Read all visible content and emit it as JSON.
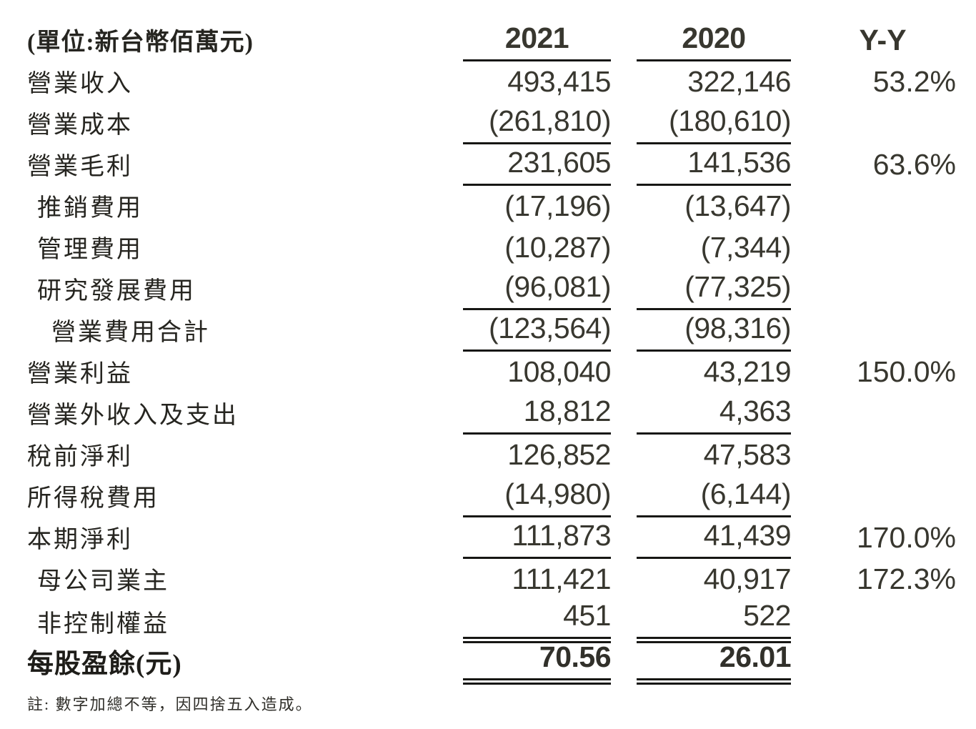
{
  "header": {
    "unit_label": "(單位:新台幣佰萬元)",
    "col_2021": "2021",
    "col_2020": "2020",
    "col_yy": "Y-Y"
  },
  "rows": [
    {
      "label": "營業收入",
      "v2021": "493,415",
      "v2020": "322,146",
      "yy": "53.2%",
      "indent": 0,
      "rule": "none",
      "bold": false
    },
    {
      "label": "營業成本",
      "v2021": "(261,810)",
      "v2020": "(180,610)",
      "yy": "",
      "indent": 0,
      "rule": "single",
      "bold": false
    },
    {
      "label": "營業毛利",
      "v2021": "231,605",
      "v2020": "141,536",
      "yy": "63.6%",
      "indent": 0,
      "rule": "single",
      "bold": false
    },
    {
      "label": "推銷費用",
      "v2021": "(17,196)",
      "v2020": "(13,647)",
      "yy": "",
      "indent": 1,
      "rule": "none",
      "bold": false
    },
    {
      "label": "管理費用",
      "v2021": "(10,287)",
      "v2020": "(7,344)",
      "yy": "",
      "indent": 1,
      "rule": "none",
      "bold": false
    },
    {
      "label": "研究發展費用",
      "v2021": "(96,081)",
      "v2020": "(77,325)",
      "yy": "",
      "indent": 1,
      "rule": "single",
      "bold": false
    },
    {
      "label": "營業費用合計",
      "v2021": "(123,564)",
      "v2020": "(98,316)",
      "yy": "",
      "indent": 2,
      "rule": "single",
      "bold": false
    },
    {
      "label": "營業利益",
      "v2021": "108,040",
      "v2020": "43,219",
      "yy": "150.0%",
      "indent": 0,
      "rule": "none",
      "bold": false
    },
    {
      "label": "營業外收入及支出",
      "v2021": "18,812",
      "v2020": "4,363",
      "yy": "",
      "indent": 0,
      "rule": "single",
      "bold": false
    },
    {
      "label": "稅前淨利",
      "v2021": "126,852",
      "v2020": "47,583",
      "yy": "",
      "indent": 0,
      "rule": "none",
      "bold": false
    },
    {
      "label": "所得稅費用",
      "v2021": "(14,980)",
      "v2020": "(6,144)",
      "yy": "",
      "indent": 0,
      "rule": "single",
      "bold": false
    },
    {
      "label": "本期淨利",
      "v2021": "111,873",
      "v2020": "41,439",
      "yy": "170.0%",
      "indent": 0,
      "rule": "single",
      "bold": false
    },
    {
      "label": "母公司業主",
      "v2021": "111,421",
      "v2020": "40,917",
      "yy": "172.3%",
      "indent": 1,
      "rule": "none",
      "bold": false
    },
    {
      "label": "非控制權益",
      "v2021": "451",
      "v2020": "522",
      "yy": "",
      "indent": 1,
      "rule": "double",
      "bold": false
    },
    {
      "label": "每股盈餘(元)",
      "v2021": "70.56",
      "v2020": "26.01",
      "yy": "",
      "indent": 0,
      "rule": "double",
      "bold": true
    }
  ],
  "note": "註:  數字加總不等，因四捨五入造成。"
}
